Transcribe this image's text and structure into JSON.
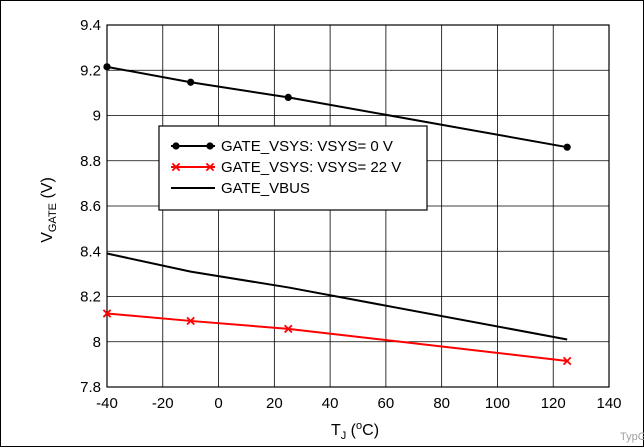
{
  "chart_data": {
    "type": "line",
    "xlabel": {
      "main": "T",
      "sub": "J",
      "pre_sup": " (",
      "sup": "o",
      "post": "C)"
    },
    "ylabel": {
      "main": "V",
      "sub": "GATE",
      "post": " (V)"
    },
    "xlim": [
      -40,
      140
    ],
    "ylim": [
      7.8,
      9.4
    ],
    "x_ticks": [
      -40,
      -20,
      0,
      20,
      40,
      60,
      80,
      100,
      120,
      140
    ],
    "x_tick_labels": [
      "-40",
      "-20",
      "0",
      "20",
      "40",
      "60",
      "80",
      "100",
      "120",
      "140"
    ],
    "y_ticks": [
      7.8,
      8.0,
      8.2,
      8.4,
      8.6,
      8.8,
      9.0,
      9.2,
      9.4
    ],
    "y_tick_labels": [
      "7.8",
      "8",
      "8.2",
      "8.4",
      "8.6",
      "8.8",
      "9",
      "9.2",
      "9.4"
    ],
    "grid": true,
    "legend_position": "center",
    "series": [
      {
        "name": "GATE_VSYS: VSYS= 0 V",
        "color": "#000000",
        "marker": "dot",
        "x": [
          -40,
          -10,
          25,
          125
        ],
        "y": [
          9.215,
          9.147,
          9.08,
          8.86
        ]
      },
      {
        "name": "GATE_VSYS: VSYS= 22 V",
        "color": "#ff0000",
        "marker": "x",
        "x": [
          -40,
          -10,
          25,
          125
        ],
        "y": [
          8.125,
          8.092,
          8.057,
          7.915
        ]
      },
      {
        "name": "GATE_VBUS",
        "color": "#000000",
        "marker": "none",
        "x": [
          -40,
          -10,
          25,
          125
        ],
        "y": [
          8.39,
          8.31,
          8.24,
          8.01
        ]
      }
    ],
    "watermark": "TypG"
  }
}
